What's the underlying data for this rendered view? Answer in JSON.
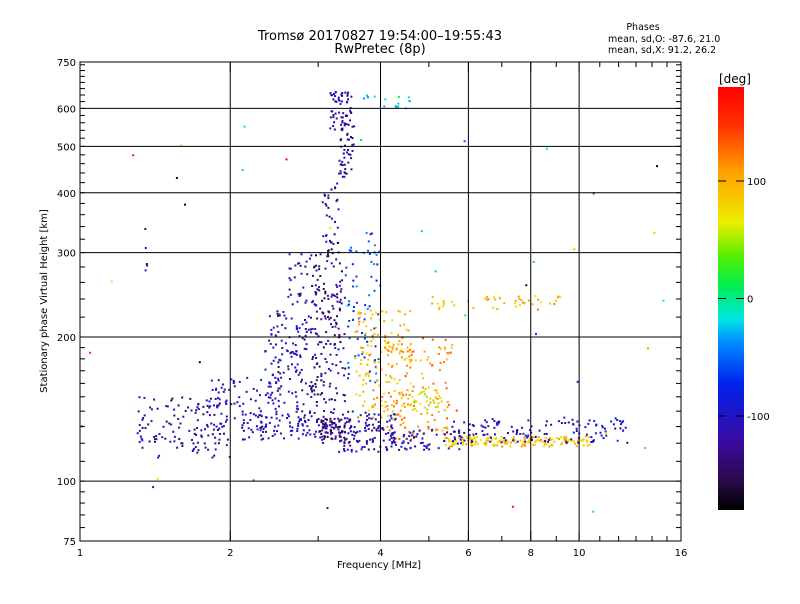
{
  "chart_data": {
    "type": "scatter",
    "title": "Tromsø 20170827 19:54:00–19:55:43",
    "subtitle": "RwPretec (8p)",
    "stats": {
      "heading": "Phases",
      "line1": "mean, sd,O:  -87.6, 21.0",
      "line2": "mean, sd,X:  91.2, 26.2"
    },
    "xlabel": "Frequency [MHz]",
    "ylabel": "Stationary phase Virtual Height [km]",
    "x_scale": "log",
    "y_scale": "log",
    "xlim": [
      1,
      16
    ],
    "ylim": [
      75,
      750
    ],
    "x_ticks": [
      1,
      2,
      4,
      6,
      8,
      10,
      16
    ],
    "x_tick_labels": [
      "1",
      "2",
      "4",
      "6",
      "8",
      "10",
      "16"
    ],
    "y_ticks": [
      75,
      100,
      200,
      300,
      400,
      500,
      600,
      750
    ],
    "y_tick_labels": [
      "75",
      "100",
      "200",
      "300",
      "400",
      "500",
      "600",
      "750"
    ],
    "grid": true,
    "colorbar": {
      "label": "[deg]",
      "range": [
        -180,
        180
      ],
      "ticks": [
        100,
        0,
        -100
      ],
      "tick_labels": [
        "100",
        "0",
        "-100"
      ],
      "colormap": "rainbow"
    },
    "clusters": [
      {
        "f0": 1.3,
        "f1": 2.0,
        "h0": 112,
        "h1": 150,
        "phase": -115,
        "n": 120
      },
      {
        "f0": 1.8,
        "f1": 2.4,
        "h0": 130,
        "h1": 165,
        "phase": -100,
        "n": 70
      },
      {
        "f0": 2.1,
        "f1": 3.0,
        "h0": 122,
        "h1": 140,
        "phase": -110,
        "n": 90
      },
      {
        "f0": 2.35,
        "f1": 2.9,
        "h0": 140,
        "h1": 230,
        "phase": -105,
        "n": 130
      },
      {
        "f0": 2.6,
        "f1": 3.0,
        "h0": 230,
        "h1": 300,
        "phase": -110,
        "n": 40
      },
      {
        "f0": 2.9,
        "f1": 3.4,
        "h0": 130,
        "h1": 300,
        "phase": -125,
        "n": 180
      },
      {
        "f0": 3.0,
        "f1": 3.4,
        "h0": 120,
        "h1": 135,
        "phase": -140,
        "n": 70
      },
      {
        "f0": 3.05,
        "f1": 3.3,
        "h0": 300,
        "h1": 420,
        "phase": -130,
        "n": 35
      },
      {
        "f0": 3.15,
        "f1": 3.5,
        "h0": 540,
        "h1": 650,
        "phase": -120,
        "n": 55
      },
      {
        "f0": 3.3,
        "f1": 3.55,
        "h0": 430,
        "h1": 560,
        "phase": -115,
        "n": 45
      },
      {
        "f0": 3.3,
        "f1": 4.3,
        "h0": 115,
        "h1": 140,
        "phase": -115,
        "n": 120
      },
      {
        "f0": 3.4,
        "f1": 4.0,
        "h0": 160,
        "h1": 330,
        "phase": -60,
        "n": 70
      },
      {
        "f0": 3.55,
        "f1": 4.6,
        "h0": 135,
        "h1": 230,
        "phase": 95,
        "n": 140
      },
      {
        "f0": 3.6,
        "f1": 4.6,
        "h0": 600,
        "h1": 640,
        "phase": -20,
        "n": 14
      },
      {
        "f0": 4.0,
        "f1": 5.6,
        "h0": 122,
        "h1": 200,
        "phase": 110,
        "n": 130
      },
      {
        "f0": 4.2,
        "f1": 5.8,
        "h0": 116,
        "h1": 128,
        "phase": -110,
        "n": 60
      },
      {
        "f0": 5.4,
        "f1": 10.5,
        "h0": 118,
        "h1": 124,
        "phase": 90,
        "n": 170
      },
      {
        "f0": 5.5,
        "f1": 9.0,
        "h0": 120,
        "h1": 135,
        "phase": -105,
        "n": 80
      },
      {
        "f0": 9.0,
        "f1": 12.5,
        "h0": 120,
        "h1": 136,
        "phase": -100,
        "n": 55
      },
      {
        "f0": 5.0,
        "f1": 9.2,
        "h0": 228,
        "h1": 245,
        "phase": 100,
        "n": 45
      },
      {
        "f0": 4.6,
        "f1": 5.4,
        "h0": 140,
        "h1": 155,
        "phase": 70,
        "n": 30
      },
      {
        "f0": 1.35,
        "f1": 1.37,
        "h0": 255,
        "h1": 360,
        "phase": -110,
        "n": 5
      },
      {
        "f0": 1.0,
        "f1": 16.0,
        "h0": 85,
        "h1": 560,
        "phase": 0,
        "n": 40,
        "spread_phase": 180
      }
    ]
  }
}
